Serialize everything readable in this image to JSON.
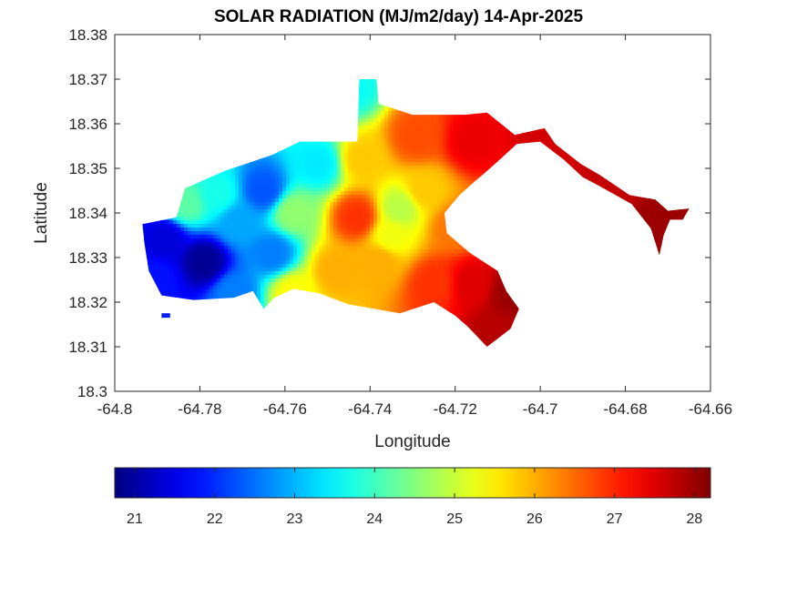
{
  "chart_data": {
    "type": "heatmap",
    "title": "SOLAR RADIATION (MJ/m2/day) 14-Apr-2025",
    "xlabel": "Longitude",
    "ylabel": "Latitude",
    "xlim": [
      -64.8,
      -64.66
    ],
    "ylim": [
      18.3,
      18.38
    ],
    "xticks": [
      "-64.8",
      "-64.78",
      "-64.76",
      "-64.74",
      "-64.72",
      "-64.7",
      "-64.68",
      "-64.66"
    ],
    "xtick_values": [
      -64.8,
      -64.78,
      -64.76,
      -64.74,
      -64.72,
      -64.7,
      -64.68,
      -64.66
    ],
    "yticks": [
      "18.3",
      "18.31",
      "18.32",
      "18.33",
      "18.34",
      "18.35",
      "18.36",
      "18.37",
      "18.38"
    ],
    "ytick_values": [
      18.3,
      18.31,
      18.32,
      18.33,
      18.34,
      18.35,
      18.36,
      18.37,
      18.38
    ],
    "grid": false,
    "colormap": "jet",
    "colorbar": {
      "orientation": "horizontal",
      "placement": "bottom",
      "range": [
        20.75,
        28.2
      ],
      "ticks": [
        "21",
        "22",
        "23",
        "24",
        "25",
        "26",
        "27",
        "28"
      ],
      "tick_values": [
        21,
        22,
        23,
        24,
        25,
        26,
        27,
        28
      ]
    },
    "field_points": [
      {
        "lon": -64.779,
        "lat": 18.329,
        "value": 20.9
      },
      {
        "lon": -64.788,
        "lat": 18.334,
        "value": 21.4
      },
      {
        "lon": -64.79,
        "lat": 18.325,
        "value": 21.8
      },
      {
        "lon": -64.772,
        "lat": 18.322,
        "value": 22.6
      },
      {
        "lon": -64.771,
        "lat": 18.338,
        "value": 22.9
      },
      {
        "lon": -64.765,
        "lat": 18.345,
        "value": 22.3
      },
      {
        "lon": -64.763,
        "lat": 18.331,
        "value": 22.6
      },
      {
        "lon": -64.776,
        "lat": 18.344,
        "value": 23.7
      },
      {
        "lon": -64.752,
        "lat": 18.351,
        "value": 23.4
      },
      {
        "lon": -64.745,
        "lat": 18.368,
        "value": 23.6
      },
      {
        "lon": -64.758,
        "lat": 18.34,
        "value": 24.6
      },
      {
        "lon": -64.758,
        "lat": 18.322,
        "value": 25.4
      },
      {
        "lon": -64.783,
        "lat": 18.342,
        "value": 24.2
      },
      {
        "lon": -64.742,
        "lat": 18.352,
        "value": 25.8
      },
      {
        "lon": -64.748,
        "lat": 18.327,
        "value": 26.0
      },
      {
        "lon": -64.738,
        "lat": 18.329,
        "value": 26.0
      },
      {
        "lon": -64.735,
        "lat": 18.335,
        "value": 25.3
      },
      {
        "lon": -64.733,
        "lat": 18.341,
        "value": 24.9
      },
      {
        "lon": -64.727,
        "lat": 18.345,
        "value": 25.8
      },
      {
        "lon": -64.743,
        "lat": 18.339,
        "value": 26.9
      },
      {
        "lon": -64.729,
        "lat": 18.357,
        "value": 26.7
      },
      {
        "lon": -64.72,
        "lat": 18.337,
        "value": 26.4
      },
      {
        "lon": -64.725,
        "lat": 18.324,
        "value": 26.9
      },
      {
        "lon": -64.716,
        "lat": 18.356,
        "value": 27.4
      },
      {
        "lon": -64.716,
        "lat": 18.324,
        "value": 27.5
      },
      {
        "lon": -64.707,
        "lat": 18.322,
        "value": 28.0
      },
      {
        "lon": -64.711,
        "lat": 18.313,
        "value": 27.8
      },
      {
        "lon": -64.699,
        "lat": 18.358,
        "value": 27.6
      },
      {
        "lon": -64.682,
        "lat": 18.347,
        "value": 27.7
      },
      {
        "lon": -64.672,
        "lat": 18.338,
        "value": 28.0
      }
    ],
    "region_outline": [
      [
        -64.7935,
        18.3375
      ],
      [
        -64.7855,
        18.339
      ],
      [
        -64.7835,
        18.3455
      ],
      [
        -64.774,
        18.3495
      ],
      [
        -64.763,
        18.353
      ],
      [
        -64.7565,
        18.356
      ],
      [
        -64.743,
        18.356
      ],
      [
        -64.7425,
        18.37
      ],
      [
        -64.7385,
        18.37
      ],
      [
        -64.738,
        18.3645
      ],
      [
        -64.73,
        18.362
      ],
      [
        -64.718,
        18.362
      ],
      [
        -64.7125,
        18.3625
      ],
      [
        -64.706,
        18.3575
      ],
      [
        -64.699,
        18.359
      ],
      [
        -64.6965,
        18.3555
      ],
      [
        -64.6905,
        18.351
      ],
      [
        -64.686,
        18.3485
      ],
      [
        -64.679,
        18.344
      ],
      [
        -64.673,
        18.343
      ],
      [
        -64.67,
        18.3405
      ],
      [
        -64.665,
        18.341
      ],
      [
        -64.6665,
        18.3385
      ],
      [
        -64.6695,
        18.3385
      ],
      [
        -64.671,
        18.335
      ],
      [
        -64.672,
        18.3305
      ],
      [
        -64.674,
        18.3365
      ],
      [
        -64.6785,
        18.342
      ],
      [
        -64.686,
        18.346
      ],
      [
        -64.69,
        18.348
      ],
      [
        -64.6945,
        18.352
      ],
      [
        -64.7,
        18.356
      ],
      [
        -64.7055,
        18.3555
      ],
      [
        -64.7095,
        18.352
      ],
      [
        -64.713,
        18.349
      ],
      [
        -64.7155,
        18.347
      ],
      [
        -64.719,
        18.344
      ],
      [
        -64.7225,
        18.34
      ],
      [
        -64.722,
        18.3355
      ],
      [
        -64.7165,
        18.331
      ],
      [
        -64.71,
        18.327
      ],
      [
        -64.708,
        18.3225
      ],
      [
        -64.705,
        18.3185
      ],
      [
        -64.707,
        18.314
      ],
      [
        -64.7125,
        18.31
      ],
      [
        -64.717,
        18.3145
      ],
      [
        -64.72,
        18.317
      ],
      [
        -64.725,
        18.32
      ],
      [
        -64.733,
        18.3175
      ],
      [
        -64.745,
        18.3195
      ],
      [
        -64.752,
        18.322
      ],
      [
        -64.758,
        18.323
      ],
      [
        -64.7625,
        18.321
      ],
      [
        -64.765,
        18.3185
      ],
      [
        -64.7675,
        18.3225
      ],
      [
        -64.772,
        18.321
      ],
      [
        -64.7815,
        18.3205
      ],
      [
        -64.789,
        18.3215
      ],
      [
        -64.792,
        18.327
      ],
      [
        -64.793,
        18.333
      ]
    ],
    "islet_outline": [
      [
        -64.789,
        18.3175
      ],
      [
        -64.787,
        18.3175
      ],
      [
        -64.787,
        18.3165
      ],
      [
        -64.789,
        18.3165
      ]
    ]
  }
}
